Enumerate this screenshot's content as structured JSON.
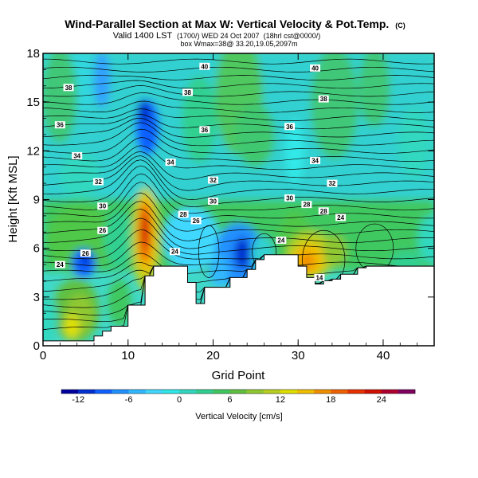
{
  "chart_data": {
    "type": "heatmap",
    "title": "Wind-Parallel Section at Max W: Vertical Velocity & Pot.Temp.",
    "title_suffix": "(C)",
    "subtitle_main": "Valid 1400 LST",
    "subtitle_rest": "(1700/) WED 24 Oct 2007",
    "subtitle_tail": "(18hrl cst@0000/)",
    "subtitle2": "box Wmax=38@ 33.20,19.05,2097m",
    "xlabel": "Grid Point",
    "ylabel": "Height [Kft MSL]",
    "xlim": [
      0,
      46
    ],
    "ylim": [
      0,
      18
    ],
    "xticks": [
      "0",
      "10",
      "20",
      "30",
      "40"
    ],
    "yticks": [
      "0",
      "3",
      "6",
      "9",
      "12",
      "15",
      "18"
    ],
    "colorbar": {
      "label": "Vertical Velocity [cm/s]",
      "range": [
        -14,
        28
      ],
      "ticks": [
        "-12",
        "-6",
        "0",
        "6",
        "12",
        "18",
        "24"
      ],
      "colors": [
        "#0000a0",
        "#0030d0",
        "#1060ff",
        "#2090ff",
        "#30b8ff",
        "#40d8ff",
        "#30e8e8",
        "#30d8c0",
        "#30d090",
        "#40c860",
        "#60c040",
        "#90c830",
        "#b8d020",
        "#e0e000",
        "#f0c000",
        "#f09000",
        "#f06000",
        "#e83000",
        "#d01000",
        "#b00030",
        "#800060"
      ]
    },
    "terrain": {
      "x": [
        0,
        6,
        6,
        7,
        7,
        8,
        8,
        10,
        10,
        12,
        12,
        13,
        13,
        17,
        17,
        18,
        18,
        19,
        19,
        22,
        22,
        24,
        24,
        25,
        25,
        26,
        26,
        30,
        30,
        31,
        31,
        32,
        32,
        33,
        33,
        34,
        34,
        35,
        35,
        37,
        37,
        38,
        38,
        46
      ],
      "y": [
        0.3,
        0.3,
        0.6,
        0.6,
        0.9,
        0.9,
        1.2,
        1.2,
        2.5,
        2.5,
        4.3,
        4.3,
        4.9,
        4.9,
        3.9,
        3.9,
        2.6,
        2.6,
        3.6,
        3.6,
        4.2,
        4.2,
        4.7,
        4.7,
        5.3,
        5.3,
        5.6,
        5.6,
        4.9,
        4.9,
        4.2,
        4.2,
        3.8,
        3.8,
        4.0,
        4.0,
        4.1,
        4.1,
        4.4,
        4.4,
        4.8,
        4.8,
        4.9,
        4.9
      ]
    },
    "contour_labels": [
      {
        "text": "40",
        "x": 19.0,
        "y": 17.2
      },
      {
        "text": "40",
        "x": 32.0,
        "y": 17.1
      },
      {
        "text": "38",
        "x": 3.0,
        "y": 15.9
      },
      {
        "text": "38",
        "x": 17.0,
        "y": 15.6
      },
      {
        "text": "38",
        "x": 33.0,
        "y": 15.2
      },
      {
        "text": "36",
        "x": 2.0,
        "y": 13.6
      },
      {
        "text": "36",
        "x": 19.0,
        "y": 13.3
      },
      {
        "text": "36",
        "x": 29.0,
        "y": 13.5
      },
      {
        "text": "34",
        "x": 4.0,
        "y": 11.7
      },
      {
        "text": "34",
        "x": 15.0,
        "y": 11.3
      },
      {
        "text": "34",
        "x": 32.0,
        "y": 11.4
      },
      {
        "text": "32",
        "x": 6.5,
        "y": 10.1
      },
      {
        "text": "32",
        "x": 20.0,
        "y": 10.2
      },
      {
        "text": "32",
        "x": 34.0,
        "y": 10.0
      },
      {
        "text": "30",
        "x": 7.0,
        "y": 8.6
      },
      {
        "text": "30",
        "x": 20.0,
        "y": 8.9
      },
      {
        "text": "30",
        "x": 29.0,
        "y": 9.1
      },
      {
        "text": "28",
        "x": 16.5,
        "y": 8.1
      },
      {
        "text": "28",
        "x": 31.0,
        "y": 8.7
      },
      {
        "text": "28",
        "x": 33.0,
        "y": 8.3
      },
      {
        "text": "26",
        "x": 18.0,
        "y": 7.7
      },
      {
        "text": "24",
        "x": 35.0,
        "y": 7.9
      },
      {
        "text": "26",
        "x": 7.0,
        "y": 7.1
      },
      {
        "text": "26",
        "x": 5.0,
        "y": 5.7
      },
      {
        "text": "24",
        "x": 2.0,
        "y": 5.0
      },
      {
        "text": "24",
        "x": 15.5,
        "y": 5.8
      },
      {
        "text": "24",
        "x": 28.0,
        "y": 6.5
      },
      {
        "text": "14",
        "x": 32.5,
        "y": 4.2
      }
    ]
  }
}
